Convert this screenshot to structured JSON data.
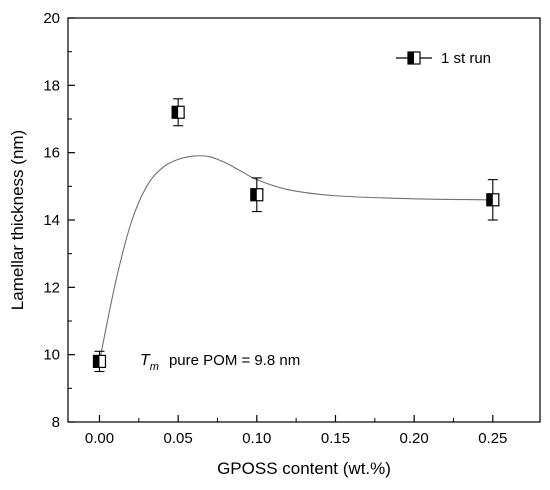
{
  "chart_data": {
    "type": "scatter",
    "xlabel": "GPOSS content (wt.%)",
    "ylabel": "Lamellar  thickness (nm)",
    "xlim": [
      -0.02,
      0.28
    ],
    "ylim": [
      8,
      20
    ],
    "xticks": [
      0.0,
      0.05,
      0.1,
      0.15,
      0.2,
      0.25
    ],
    "xtick_labels": [
      "0.00",
      "0.05",
      "0.10",
      "0.15",
      "0.20",
      "0.25"
    ],
    "yticks": [
      8,
      10,
      12,
      14,
      16,
      18,
      20
    ],
    "ytick_labels": [
      "8",
      "10",
      "12",
      "14",
      "16",
      "18",
      "20"
    ],
    "grid": false,
    "legend_position": "top-right",
    "series": [
      {
        "name": "1 st run",
        "marker": "half-filled-square",
        "color": "#000000",
        "points": [
          {
            "x": 0.0,
            "y": 9.8,
            "err": 0.3
          },
          {
            "x": 0.05,
            "y": 17.2,
            "err": 0.4
          },
          {
            "x": 0.1,
            "y": 14.75,
            "err": 0.5
          },
          {
            "x": 0.25,
            "y": 14.6,
            "err": 0.6
          }
        ]
      }
    ],
    "fit_curve": [
      [
        0.0,
        9.8
      ],
      [
        0.01,
        12.1
      ],
      [
        0.02,
        13.9
      ],
      [
        0.03,
        15.0
      ],
      [
        0.04,
        15.55
      ],
      [
        0.05,
        15.8
      ],
      [
        0.06,
        15.9
      ],
      [
        0.07,
        15.88
      ],
      [
        0.08,
        15.7
      ],
      [
        0.09,
        15.45
      ],
      [
        0.1,
        15.2
      ],
      [
        0.12,
        14.9
      ],
      [
        0.15,
        14.72
      ],
      [
        0.2,
        14.63
      ],
      [
        0.25,
        14.6
      ]
    ],
    "annotation": {
      "symbol": "T",
      "subscript": "m",
      "text": "pure POM = 9.8 nm"
    },
    "line_color": "#707070"
  }
}
